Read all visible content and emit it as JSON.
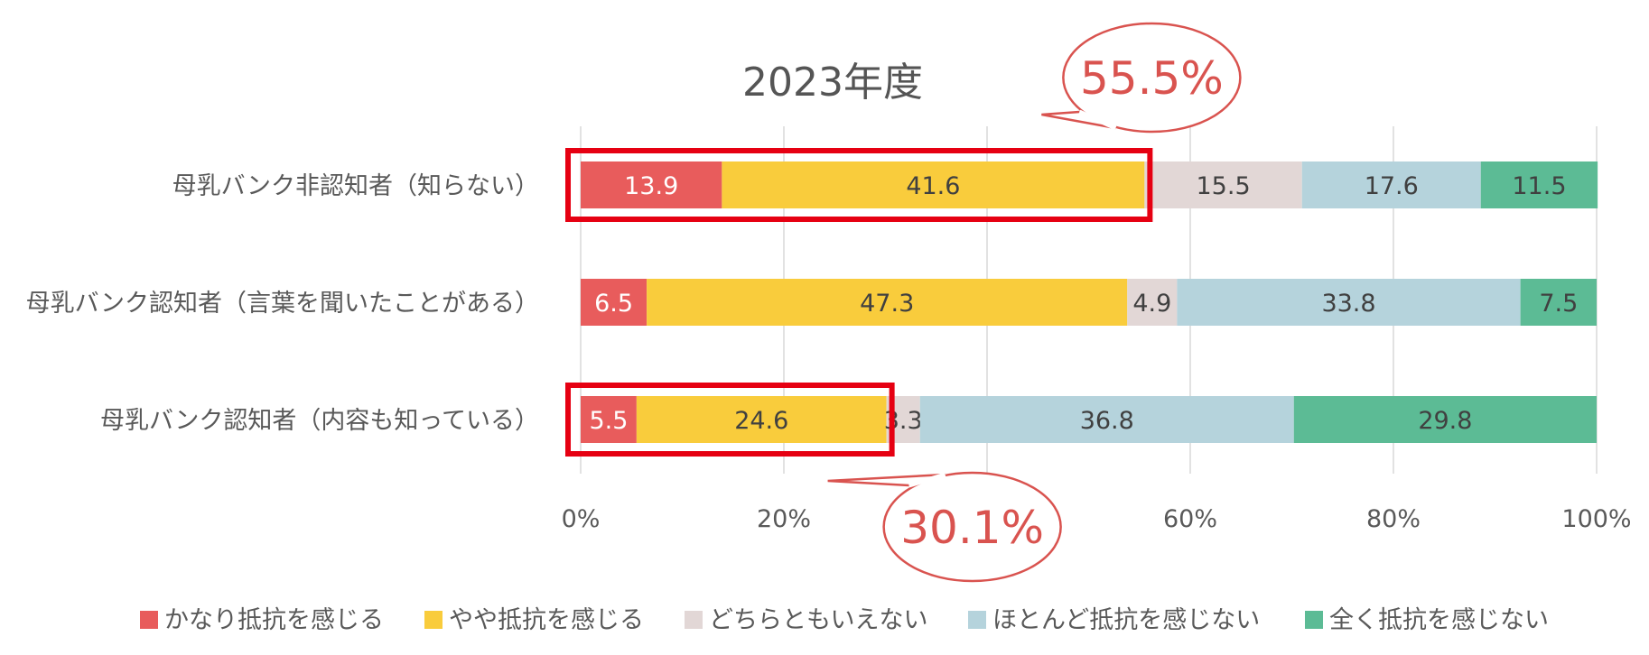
{
  "chart_data": {
    "type": "bar",
    "orientation": "horizontal",
    "stacked": true,
    "title": "2023年度",
    "categories": [
      "母乳バンク非認知者（知らない）",
      "母乳バンク認知者（言葉を聞いたことがある）",
      "母乳バンク認知者（内容も知っている）"
    ],
    "series": [
      {
        "name": "かなり抵抗を感じる",
        "color": "#E85C5C",
        "values": [
          13.9,
          6.5,
          5.5
        ]
      },
      {
        "name": "やや抵抗を感じる",
        "color": "#F9CC3C",
        "values": [
          41.6,
          47.3,
          24.6
        ]
      },
      {
        "name": "どちらともいえない",
        "color": "#E2D7D6",
        "values": [
          15.5,
          4.9,
          3.3
        ]
      },
      {
        "name": "ほとんど抵抗を感じない",
        "color": "#B5D3DC",
        "values": [
          17.6,
          33.8,
          36.8
        ]
      },
      {
        "name": "全く抵抗を感じない",
        "color": "#5CBB95",
        "values": [
          11.5,
          7.5,
          29.8
        ]
      }
    ],
    "data_labels": [
      [
        "13.9",
        "41.6",
        "15.5",
        "17.6",
        "11.5"
      ],
      [
        "6.5",
        "47.3",
        "4.9",
        "33.8",
        "7.5"
      ],
      [
        "5.5",
        "24.6",
        "3.3",
        "36.8",
        "29.8"
      ]
    ],
    "xlim": [
      0,
      100
    ],
    "x_ticks": [
      "0%",
      "20%",
      "40%",
      "60%",
      "80%",
      "100%"
    ],
    "grid": true,
    "legend_position": "bottom",
    "annotations": [
      {
        "text": "55.5%",
        "category_index": 0,
        "highlight_series": [
          0,
          1
        ],
        "value": 55.5,
        "color": "#D9534F",
        "bubble_side": "top"
      },
      {
        "text": "30.1%",
        "category_index": 2,
        "highlight_series": [
          0,
          1
        ],
        "value": 30.1,
        "color": "#D9534F",
        "bubble_side": "bottom"
      }
    ],
    "highlight_box_color": "#E60012"
  }
}
